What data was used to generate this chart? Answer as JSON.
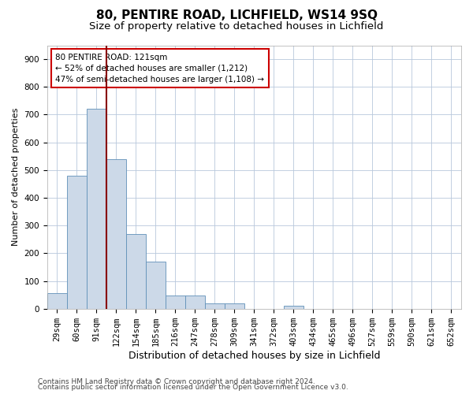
{
  "title1": "80, PENTIRE ROAD, LICHFIELD, WS14 9SQ",
  "title2": "Size of property relative to detached houses in Lichfield",
  "xlabel": "Distribution of detached houses by size in Lichfield",
  "ylabel": "Number of detached properties",
  "categories": [
    "29sqm",
    "60sqm",
    "91sqm",
    "122sqm",
    "154sqm",
    "185sqm",
    "216sqm",
    "247sqm",
    "278sqm",
    "309sqm",
    "341sqm",
    "372sqm",
    "403sqm",
    "434sqm",
    "465sqm",
    "496sqm",
    "527sqm",
    "559sqm",
    "590sqm",
    "621sqm",
    "652sqm"
  ],
  "values": [
    55,
    480,
    720,
    540,
    270,
    170,
    47,
    47,
    20,
    20,
    0,
    0,
    10,
    0,
    0,
    0,
    0,
    0,
    0,
    0,
    0
  ],
  "bar_color": "#ccd9e8",
  "bar_edge_color": "#6090b8",
  "vline_color": "#880000",
  "vline_x_index": 2.5,
  "annotation_text": "80 PENTIRE ROAD: 121sqm\n← 52% of detached houses are smaller (1,212)\n47% of semi-detached houses are larger (1,108) →",
  "annotation_box_color": "#ffffff",
  "annotation_border_color": "#cc0000",
  "ylim": [
    0,
    950
  ],
  "yticks": [
    0,
    100,
    200,
    300,
    400,
    500,
    600,
    700,
    800,
    900
  ],
  "footer_line1": "Contains HM Land Registry data © Crown copyright and database right 2024.",
  "footer_line2": "Contains public sector information licensed under the Open Government Licence v3.0.",
  "bg_color": "#ffffff",
  "grid_color": "#b8c8dc",
  "title1_fontsize": 11,
  "title2_fontsize": 9.5,
  "xlabel_fontsize": 9,
  "ylabel_fontsize": 8,
  "tick_fontsize": 7.5,
  "footer_fontsize": 6.5
}
